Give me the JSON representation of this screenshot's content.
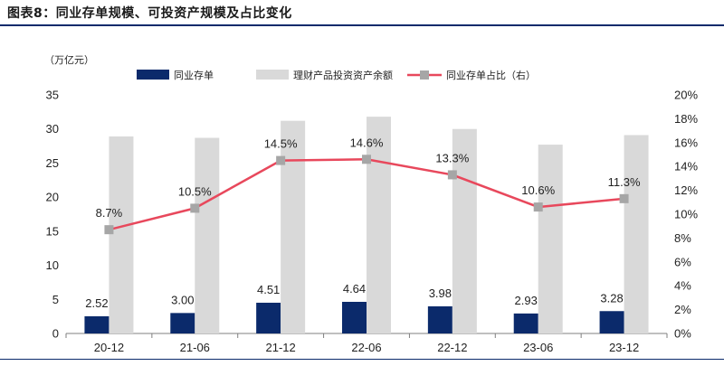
{
  "header": {
    "title": "图表8：同业存单规模、可投资产规模及占比变化"
  },
  "colors": {
    "bar1": "#0b2a6b",
    "bar2": "#d9d9d9",
    "line": "#e8485c",
    "marker": "#a6a6a6",
    "rule": "#0b2a6b"
  },
  "chart_data": {
    "type": "bar",
    "categories": [
      "20-12",
      "21-06",
      "21-12",
      "22-06",
      "22-12",
      "23-06",
      "23-12"
    ],
    "unit_label": "（万亿元）",
    "series": [
      {
        "name": "同业存单",
        "type": "bar",
        "axis": "left",
        "values": [
          2.52,
          3.0,
          4.51,
          4.64,
          3.98,
          2.93,
          3.28
        ],
        "labels": [
          "2.52",
          "3.00",
          "4.51",
          "4.64",
          "3.98",
          "2.93",
          "3.28"
        ]
      },
      {
        "name": "理财产品投资资产余额",
        "type": "bar",
        "axis": "left",
        "values": [
          28.9,
          28.7,
          31.2,
          31.8,
          30.0,
          27.7,
          29.1
        ]
      },
      {
        "name": "同业存单占比（右）",
        "type": "line",
        "axis": "right",
        "values": [
          8.7,
          10.5,
          14.5,
          14.6,
          13.3,
          10.6,
          11.3
        ],
        "labels": [
          "8.7%",
          "10.5%",
          "14.5%",
          "14.6%",
          "13.3%",
          "10.6%",
          "11.3%"
        ]
      }
    ],
    "y_left": {
      "min": 0,
      "max": 35,
      "step": 5,
      "ticks": [
        "0",
        "5",
        "10",
        "15",
        "20",
        "25",
        "30",
        "35"
      ]
    },
    "y_right": {
      "min": 0,
      "max": 20,
      "step": 2,
      "ticks": [
        "0%",
        "2%",
        "4%",
        "6%",
        "8%",
        "10%",
        "12%",
        "14%",
        "16%",
        "18%",
        "20%"
      ]
    },
    "legend_position": "top",
    "grid": false
  }
}
